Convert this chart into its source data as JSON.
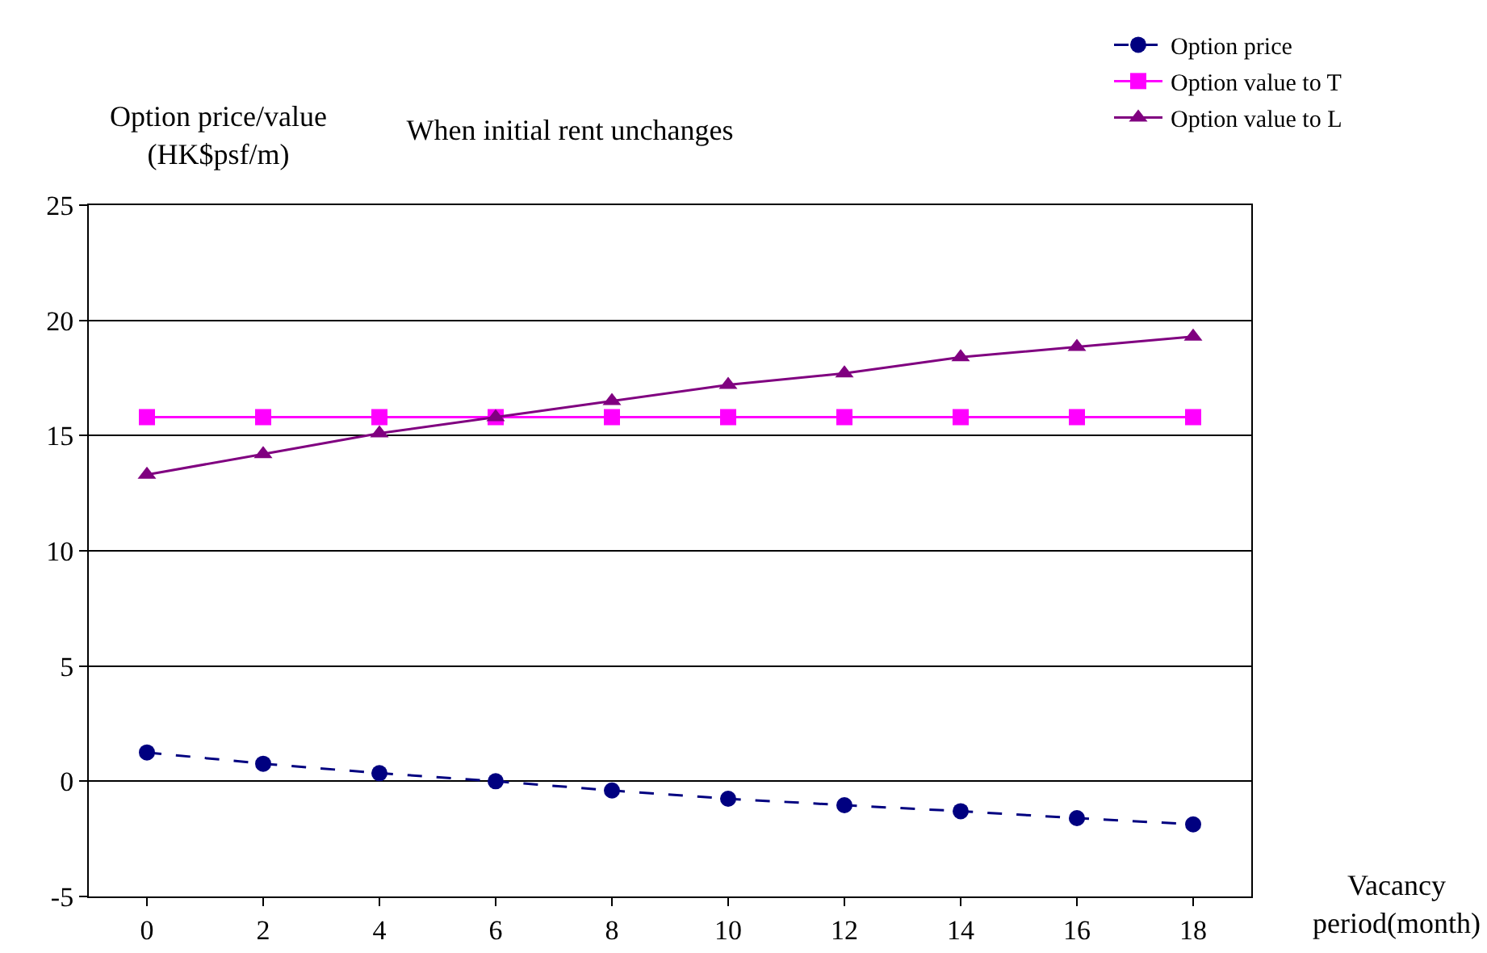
{
  "chart_data": {
    "type": "line",
    "title": "When initial rent unchanges",
    "xlabel": "Vacancy\nperiod(month)",
    "ylabel": "Option price/value\n(HK$psf/m)",
    "categories": [
      "0",
      "2",
      "4",
      "6",
      "8",
      "10",
      "12",
      "14",
      "16",
      "18"
    ],
    "series": [
      {
        "name": "Option price",
        "color": "#000080",
        "marker": "circle",
        "line_style": "dashed",
        "values": [
          1.25,
          0.76,
          0.35,
          0,
          -0.4,
          -0.76,
          -1.04,
          -1.3,
          -1.6,
          -1.87
        ]
      },
      {
        "name": "Option value to T",
        "color": "#ff00ff",
        "marker": "square",
        "line_style": "solid",
        "values": [
          15.8,
          15.8,
          15.8,
          15.8,
          15.8,
          15.8,
          15.8,
          15.8,
          15.8,
          15.8
        ]
      },
      {
        "name": "Option value to L",
        "color": "#800080",
        "marker": "triangle",
        "line_style": "solid",
        "values": [
          13.3,
          14.2,
          15.1,
          15.8,
          16.5,
          17.2,
          17.7,
          18.4,
          18.85,
          19.3
        ]
      }
    ],
    "ylim": [
      -5,
      25
    ],
    "yticks": [
      -5,
      0,
      5,
      10,
      15,
      20,
      25
    ],
    "grid": "y",
    "legend": "top right"
  }
}
